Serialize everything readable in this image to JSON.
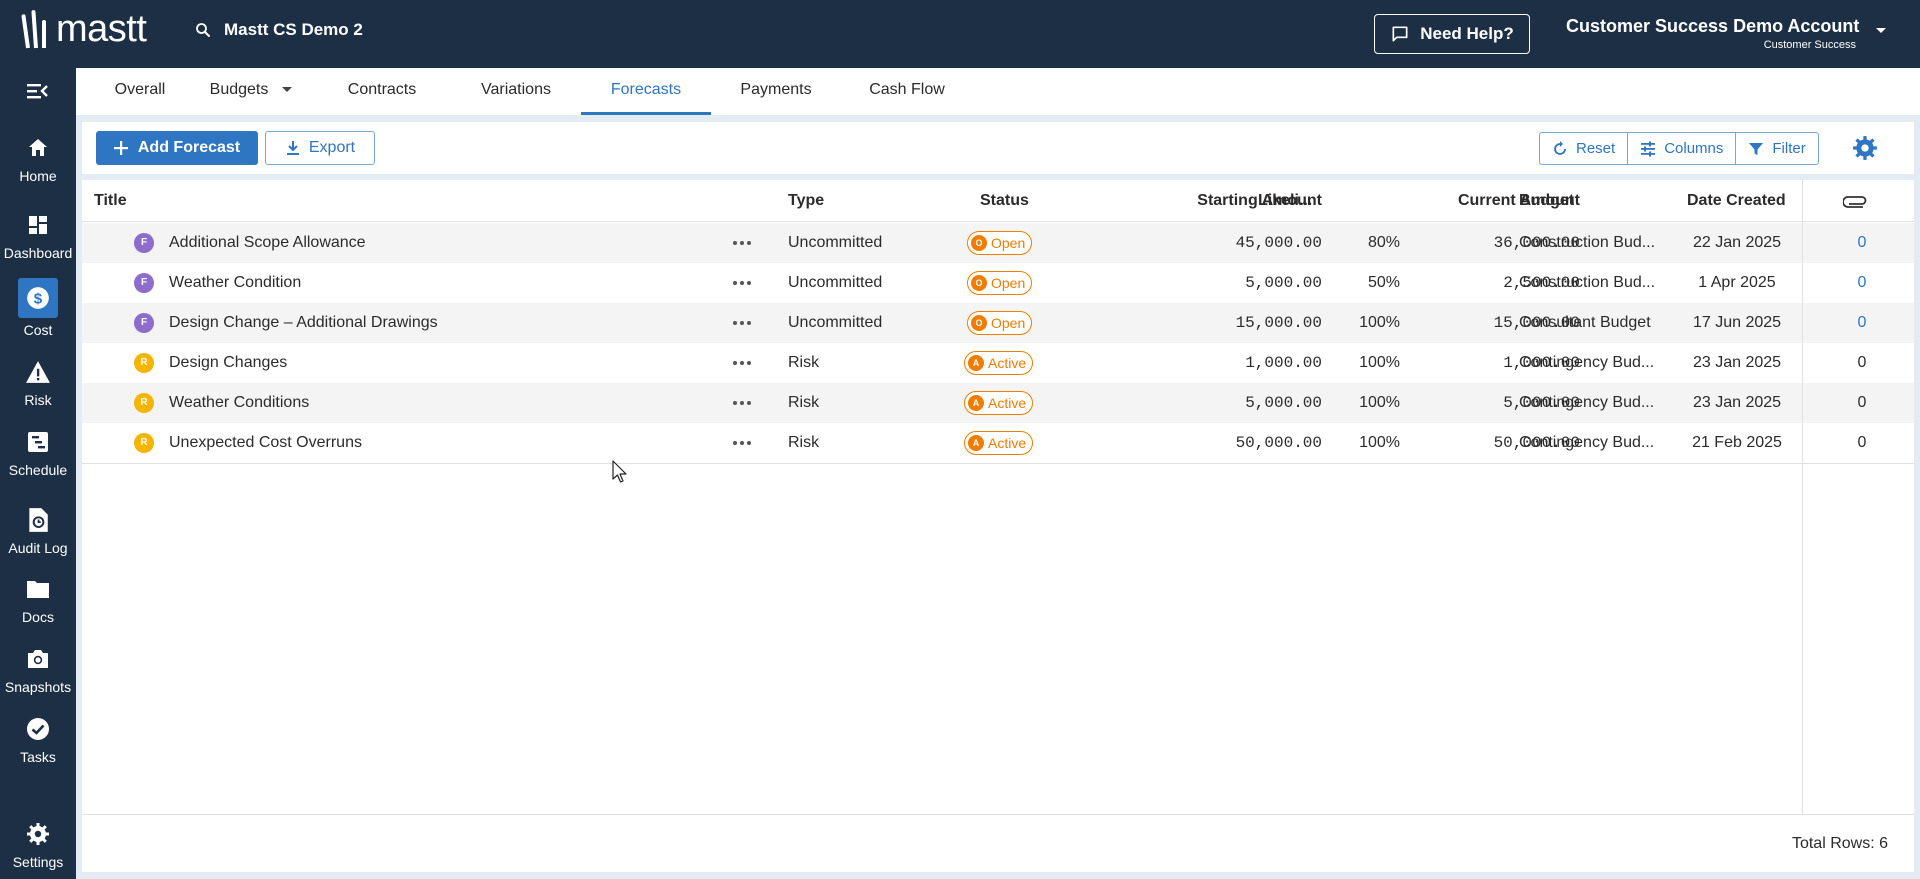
{
  "app": {
    "logo_text": "mastt",
    "project_title": "Mastt CS Demo 2",
    "help_label": "Need Help?",
    "account_name": "Customer Success Demo Account",
    "account_sub": "Customer Success"
  },
  "sidebar": {
    "items": [
      {
        "label": "Home",
        "icon": "home-icon"
      },
      {
        "label": "Dashboard",
        "icon": "dashboard-icon"
      },
      {
        "label": "Cost",
        "icon": "dollar-icon"
      },
      {
        "label": "Risk",
        "icon": "warning-icon"
      },
      {
        "label": "Schedule",
        "icon": "schedule-icon"
      },
      {
        "label": "Audit Log",
        "icon": "audit-log-icon"
      },
      {
        "label": "Docs",
        "icon": "folder-icon"
      },
      {
        "label": "Snapshots",
        "icon": "camera-icon"
      },
      {
        "label": "Tasks",
        "icon": "check-circle-icon"
      },
      {
        "label": "Settings",
        "icon": "gear-icon"
      }
    ]
  },
  "tabs": [
    "Overall",
    "Budgets",
    "Contracts",
    "Variations",
    "Forecasts",
    "Payments",
    "Cash Flow"
  ],
  "toolbar": {
    "add_label": "Add Forecast",
    "export_label": "Export",
    "reset_label": "Reset",
    "columns_label": "Columns",
    "filter_label": "Filter"
  },
  "table": {
    "headers": {
      "title": "Title",
      "type": "Type",
      "status": "Status",
      "starting": "Starting Amount",
      "likelihood": "Likeli...",
      "current": "Current Amount",
      "budget": "Budget",
      "date": "Date Created"
    },
    "rows": [
      {
        "avatar": "F",
        "title": "Additional Scope Allowance",
        "type": "Uncommitted",
        "status_letter": "O",
        "status": "Open",
        "starting": "45,000.00",
        "likelihood": "80%",
        "current": "36,000.00",
        "budget": "Construction Bud...",
        "date": "22 Jan 2025",
        "attachments": "0"
      },
      {
        "avatar": "F",
        "title": "Weather Condition",
        "type": "Uncommitted",
        "status_letter": "O",
        "status": "Open",
        "starting": "5,000.00",
        "likelihood": "50%",
        "current": "2,500.00",
        "budget": "Construction Bud...",
        "date": "1 Apr 2025",
        "attachments": "0"
      },
      {
        "avatar": "F",
        "title": "Design Change – Additional Drawings",
        "type": "Uncommitted",
        "status_letter": "O",
        "status": "Open",
        "starting": "15,000.00",
        "likelihood": "100%",
        "current": "15,000.00",
        "budget": "Consultant Budget",
        "date": "17 Jun 2025",
        "attachments": "0"
      },
      {
        "avatar": "R",
        "title": "Design Changes",
        "type": "Risk",
        "status_letter": "A",
        "status": "Active",
        "starting": "1,000.00",
        "likelihood": "100%",
        "current": "1,000.00",
        "budget": "Contingency Bud...",
        "date": "23 Jan 2025",
        "attachments": "0"
      },
      {
        "avatar": "R",
        "title": "Weather Conditions",
        "type": "Risk",
        "status_letter": "A",
        "status": "Active",
        "starting": "5,000.00",
        "likelihood": "100%",
        "current": "5,000.00",
        "budget": "Contingency Bud...",
        "date": "23 Jan 2025",
        "attachments": "0"
      },
      {
        "avatar": "R",
        "title": "Unexpected Cost Overruns",
        "type": "Risk",
        "status_letter": "A",
        "status": "Active",
        "starting": "50,000.00",
        "likelihood": "100%",
        "current": "50,000.00",
        "budget": "Contingency Bud...",
        "date": "21 Feb 2025",
        "attachments": "0"
      }
    ],
    "total_rows": "Total Rows: 6"
  },
  "colors": {
    "navy": "#1c2f44",
    "accent": "#2e75c2",
    "status_orange": "#f07c00",
    "avatar_forecast": "#8e6cc9",
    "avatar_risk": "#f5b400"
  }
}
